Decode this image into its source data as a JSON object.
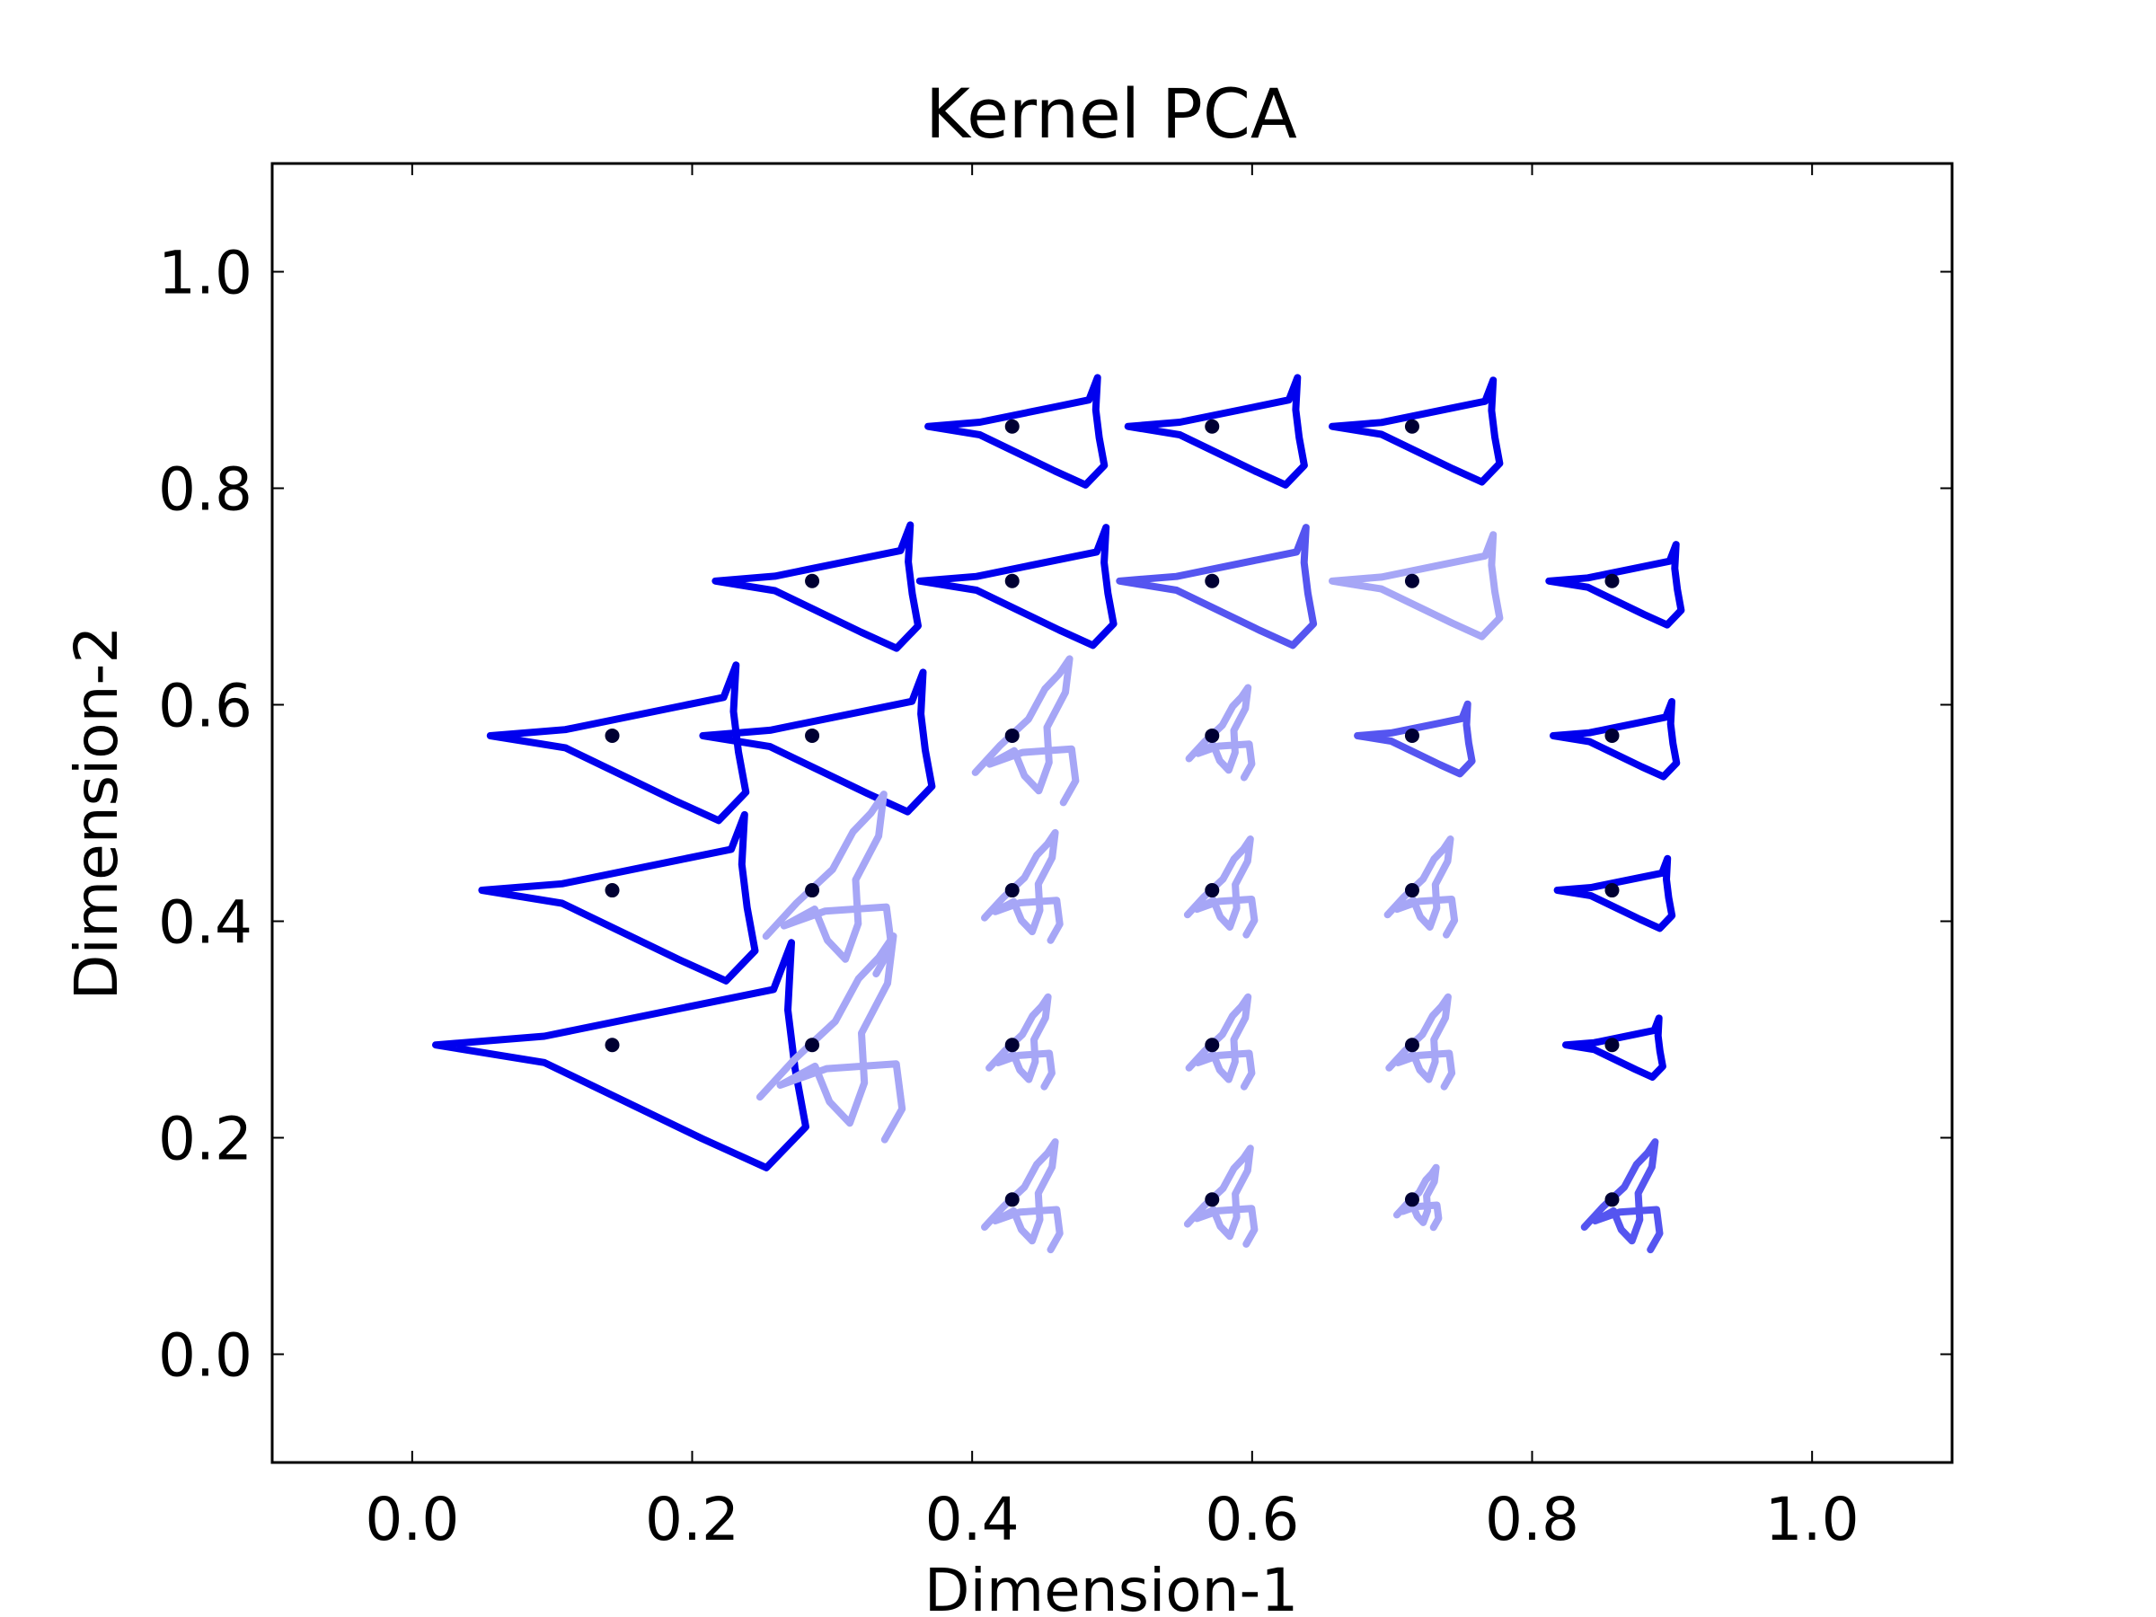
{
  "chart_data": {
    "type": "scatter",
    "title": "Kernel PCA",
    "xlabel": "Dimension-1",
    "ylabel": "Dimension-2",
    "xlim": [
      -0.1,
      1.1
    ],
    "ylim": [
      -0.1,
      1.1
    ],
    "xticks": [
      "0.0",
      "0.2",
      "0.4",
      "0.6",
      "0.8",
      "1.0"
    ],
    "yticks": [
      "0.0",
      "0.2",
      "0.4",
      "0.6",
      "0.8",
      "1.0"
    ],
    "grid": false,
    "legend": "none",
    "point_color": "#000033",
    "shape_colors": {
      "dark": "#0000ee",
      "medium": "#5555f0",
      "light": "#a6a6f6"
    },
    "points": [
      {
        "x": 0.4286,
        "y": 0.8571,
        "shape": "clean",
        "size": 1.0,
        "tone": "dark"
      },
      {
        "x": 0.5714,
        "y": 0.8571,
        "shape": "clean",
        "size": 1.0,
        "tone": "dark"
      },
      {
        "x": 0.7143,
        "y": 0.8571,
        "shape": "clean",
        "size": 0.95,
        "tone": "dark"
      },
      {
        "x": 0.2857,
        "y": 0.7143,
        "shape": "clean",
        "size": 1.15,
        "tone": "dark"
      },
      {
        "x": 0.4286,
        "y": 0.7143,
        "shape": "clean",
        "size": 1.1,
        "tone": "dark"
      },
      {
        "x": 0.5714,
        "y": 0.7143,
        "shape": "clean",
        "size": 1.1,
        "tone": "medium"
      },
      {
        "x": 0.7143,
        "y": 0.7143,
        "shape": "clean",
        "size": 0.95,
        "tone": "light"
      },
      {
        "x": 0.8571,
        "y": 0.7143,
        "shape": "clean",
        "size": 0.75,
        "tone": "dark"
      },
      {
        "x": 0.1429,
        "y": 0.5714,
        "shape": "clean",
        "size": 1.45,
        "tone": "dark"
      },
      {
        "x": 0.2857,
        "y": 0.5714,
        "shape": "clean",
        "size": 1.3,
        "tone": "dark"
      },
      {
        "x": 0.4286,
        "y": 0.5714,
        "shape": "messy",
        "size": 1.2,
        "tone": "light"
      },
      {
        "x": 0.5714,
        "y": 0.5714,
        "shape": "messy",
        "size": 0.75,
        "tone": "light"
      },
      {
        "x": 0.7143,
        "y": 0.5714,
        "shape": "clean",
        "size": 0.65,
        "tone": "medium"
      },
      {
        "x": 0.8571,
        "y": 0.5714,
        "shape": "clean",
        "size": 0.7,
        "tone": "dark"
      },
      {
        "x": 0.1429,
        "y": 0.4286,
        "shape": "clean",
        "size": 1.55,
        "tone": "dark"
      },
      {
        "x": 0.2857,
        "y": 0.4286,
        "shape": "messy",
        "size": 1.5,
        "tone": "light"
      },
      {
        "x": 0.4286,
        "y": 0.4286,
        "shape": "messy",
        "size": 0.9,
        "tone": "light"
      },
      {
        "x": 0.5714,
        "y": 0.4286,
        "shape": "messy",
        "size": 0.8,
        "tone": "light"
      },
      {
        "x": 0.7143,
        "y": 0.4286,
        "shape": "messy",
        "size": 0.8,
        "tone": "light"
      },
      {
        "x": 0.8571,
        "y": 0.4286,
        "shape": "clean",
        "size": 0.65,
        "tone": "dark"
      },
      {
        "x": 0.1429,
        "y": 0.2857,
        "shape": "clean",
        "size": 2.1,
        "tone": "dark"
      },
      {
        "x": 0.2857,
        "y": 0.2857,
        "shape": "messy",
        "size": 1.7,
        "tone": "light"
      },
      {
        "x": 0.4286,
        "y": 0.2857,
        "shape": "messy",
        "size": 0.75,
        "tone": "light"
      },
      {
        "x": 0.5714,
        "y": 0.2857,
        "shape": "messy",
        "size": 0.75,
        "tone": "light"
      },
      {
        "x": 0.7143,
        "y": 0.2857,
        "shape": "messy",
        "size": 0.75,
        "tone": "light"
      },
      {
        "x": 0.8571,
        "y": 0.2857,
        "shape": "clean",
        "size": 0.55,
        "tone": "dark"
      },
      {
        "x": 0.4286,
        "y": 0.1429,
        "shape": "messy",
        "size": 0.9,
        "tone": "light"
      },
      {
        "x": 0.5714,
        "y": 0.1429,
        "shape": "messy",
        "size": 0.8,
        "tone": "light"
      },
      {
        "x": 0.7143,
        "y": 0.1429,
        "shape": "messy",
        "size": 0.5,
        "tone": "light"
      },
      {
        "x": 0.8571,
        "y": 0.1429,
        "shape": "messy",
        "size": 0.9,
        "tone": "medium"
      }
    ]
  }
}
